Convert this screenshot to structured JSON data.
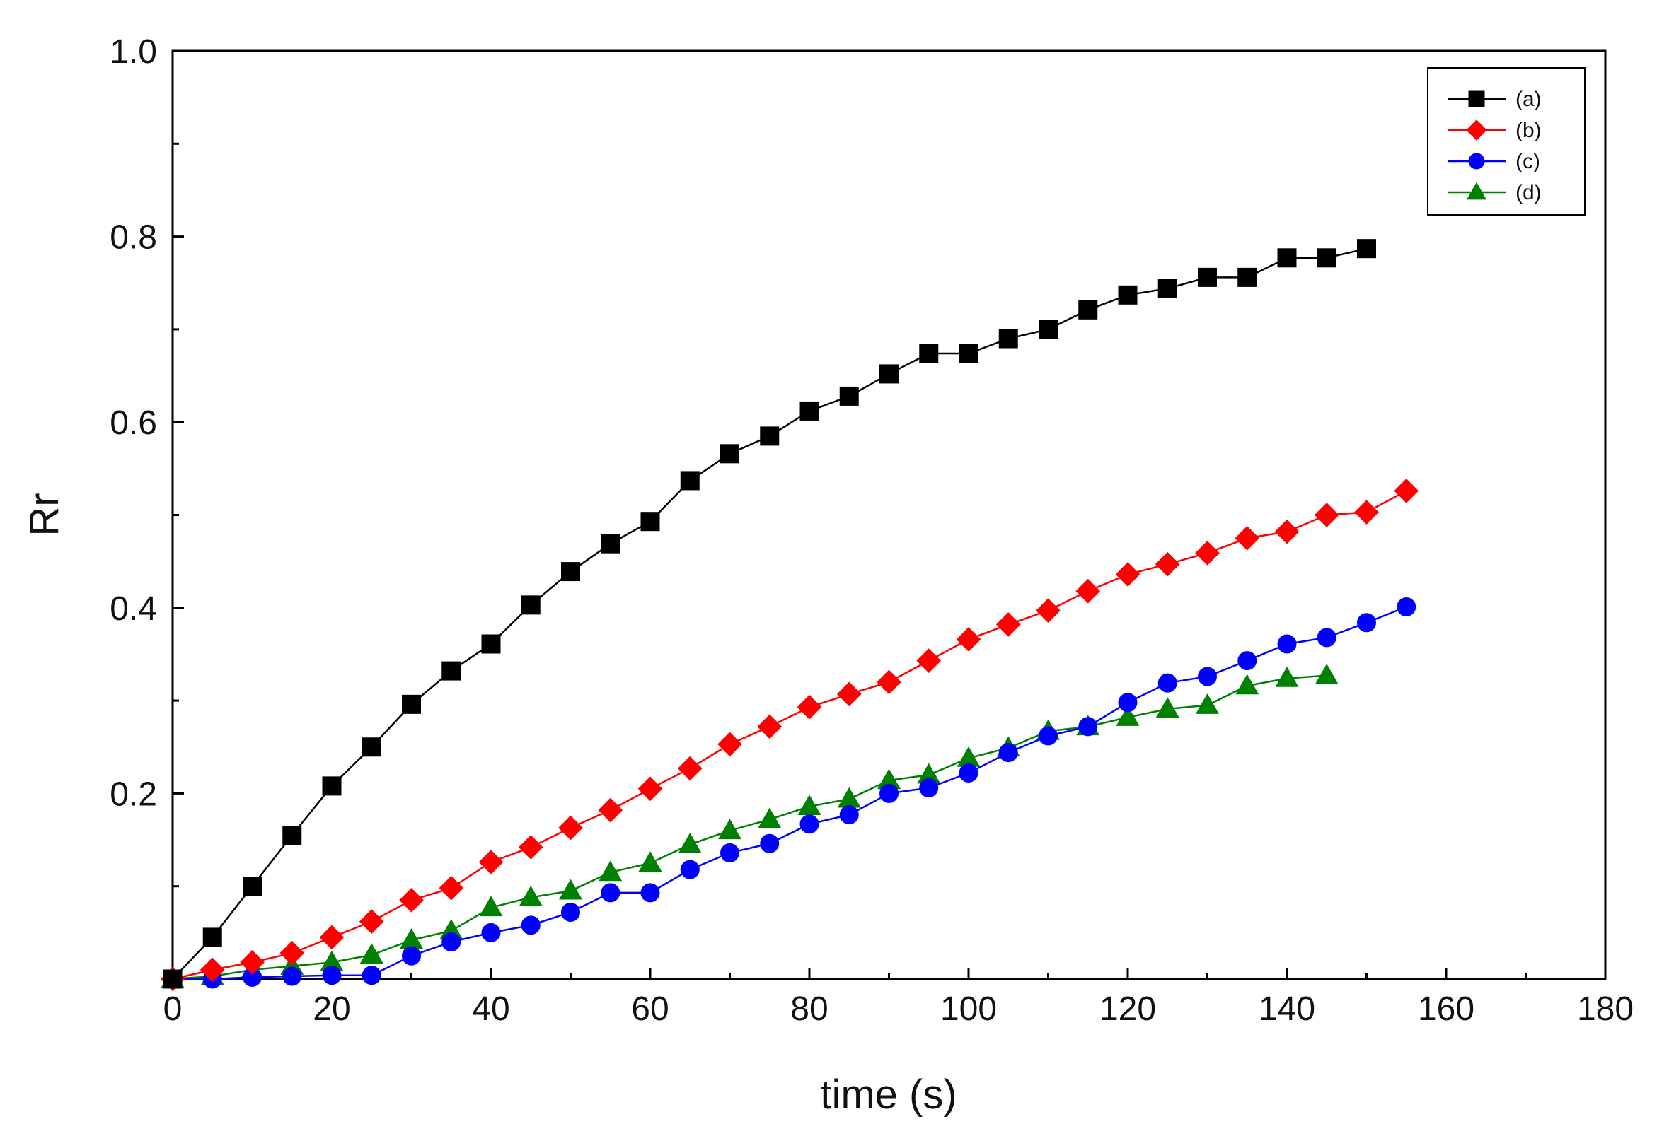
{
  "chart_data": {
    "type": "line",
    "title": "",
    "xlabel": "time (s)",
    "ylabel": "Rr",
    "xlim": [
      0,
      180
    ],
    "ylim": [
      0,
      1.0
    ],
    "x_ticks": [
      0,
      20,
      40,
      60,
      80,
      100,
      120,
      140,
      160,
      180
    ],
    "x_tick_labels": [
      "0",
      "20",
      "40",
      "60",
      "80",
      "100",
      "120",
      "140",
      "160",
      "180"
    ],
    "y_ticks": [
      0.2,
      0.4,
      0.6,
      0.8,
      1.0
    ],
    "y_tick_labels": [
      "0.2",
      "0.4",
      "0.6",
      "0.8",
      "1.0"
    ],
    "grid": false,
    "legend_position": "top-right",
    "series": [
      {
        "name": "(a)",
        "color": "#000000",
        "marker": "square",
        "x": [
          0,
          5,
          10,
          15,
          20,
          25,
          30,
          35,
          40,
          45,
          50,
          55,
          60,
          65,
          70,
          75,
          80,
          85,
          90,
          95,
          100,
          105,
          110,
          115,
          120,
          125,
          130,
          135,
          140,
          145,
          150
        ],
        "values": [
          0.0,
          0.045,
          0.1,
          0.155,
          0.208,
          0.25,
          0.296,
          0.332,
          0.361,
          0.403,
          0.439,
          0.469,
          0.493,
          0.537,
          0.566,
          0.585,
          0.612,
          0.628,
          0.652,
          0.674,
          0.674,
          0.69,
          0.7,
          0.721,
          0.737,
          0.744,
          0.756,
          0.756,
          0.777,
          0.777,
          0.787
        ]
      },
      {
        "name": "(b)",
        "color": "#ff0000",
        "marker": "diamond",
        "x": [
          0,
          5,
          10,
          15,
          20,
          25,
          30,
          35,
          40,
          45,
          50,
          55,
          60,
          65,
          70,
          75,
          80,
          85,
          90,
          95,
          100,
          105,
          110,
          115,
          120,
          125,
          130,
          135,
          140,
          145,
          150,
          155
        ],
        "values": [
          0.0,
          0.01,
          0.018,
          0.028,
          0.045,
          0.062,
          0.085,
          0.098,
          0.126,
          0.142,
          0.163,
          0.182,
          0.205,
          0.227,
          0.253,
          0.272,
          0.293,
          0.307,
          0.32,
          0.343,
          0.366,
          0.382,
          0.397,
          0.418,
          0.436,
          0.447,
          0.459,
          0.475,
          0.482,
          0.5,
          0.503,
          0.526
        ]
      },
      {
        "name": "(c)",
        "color": "#0000ff",
        "marker": "circle",
        "x": [
          0,
          5,
          10,
          15,
          20,
          25,
          30,
          35,
          40,
          45,
          50,
          55,
          60,
          65,
          70,
          75,
          80,
          85,
          90,
          95,
          100,
          105,
          110,
          115,
          120,
          125,
          130,
          135,
          140,
          145,
          150,
          155
        ],
        "values": [
          0.0,
          0.0,
          0.002,
          0.003,
          0.004,
          0.004,
          0.025,
          0.04,
          0.05,
          0.058,
          0.072,
          0.093,
          0.093,
          0.118,
          0.136,
          0.146,
          0.167,
          0.177,
          0.2,
          0.206,
          0.222,
          0.244,
          0.262,
          0.272,
          0.298,
          0.319,
          0.326,
          0.343,
          0.361,
          0.368,
          0.384,
          0.401
        ]
      },
      {
        "name": "(d)",
        "color": "#008000",
        "marker": "triangle",
        "x": [
          0,
          5,
          10,
          15,
          20,
          25,
          30,
          35,
          40,
          45,
          50,
          55,
          60,
          65,
          70,
          75,
          80,
          85,
          90,
          95,
          100,
          105,
          110,
          115,
          120,
          125,
          130,
          135,
          140,
          145
        ],
        "values": [
          0.0,
          0.003,
          0.01,
          0.014,
          0.018,
          0.026,
          0.042,
          0.052,
          0.077,
          0.088,
          0.095,
          0.115,
          0.125,
          0.145,
          0.16,
          0.172,
          0.186,
          0.194,
          0.214,
          0.22,
          0.238,
          0.249,
          0.267,
          0.272,
          0.282,
          0.291,
          0.295,
          0.316,
          0.324,
          0.327
        ]
      }
    ]
  }
}
